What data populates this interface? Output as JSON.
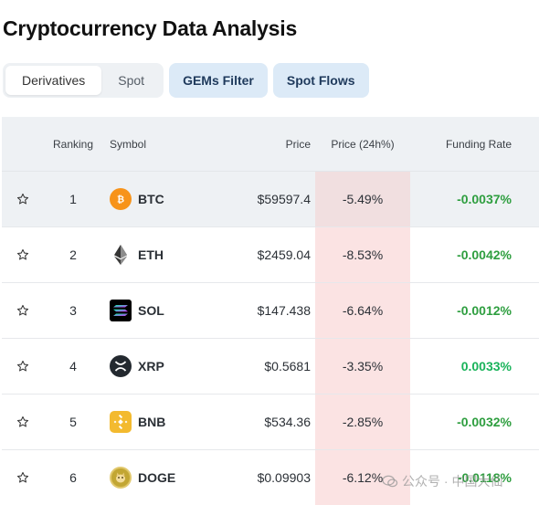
{
  "page": {
    "title": "Cryptocurrency Data Analysis"
  },
  "tabs": {
    "derivatives": "Derivatives",
    "spot": "Spot",
    "gems_filter": "GEMs Filter",
    "spot_flows": "Spot Flows"
  },
  "table": {
    "headers": {
      "ranking": "Ranking",
      "symbol": "Symbol",
      "price": "Price",
      "change": "Price (24h%)",
      "funding": "Funding Rate"
    },
    "rows": [
      {
        "rank": "1",
        "symbol": "BTC",
        "price": "$59597.4",
        "change": "-5.49%",
        "funding": "-0.0037%",
        "icon": "btc-icon"
      },
      {
        "rank": "2",
        "symbol": "ETH",
        "price": "$2459.04",
        "change": "-8.53%",
        "funding": "-0.0042%",
        "icon": "eth-icon"
      },
      {
        "rank": "3",
        "symbol": "SOL",
        "price": "$147.438",
        "change": "-6.64%",
        "funding": "-0.0012%",
        "icon": "sol-icon"
      },
      {
        "rank": "4",
        "symbol": "XRP",
        "price": "$0.5681",
        "change": "-3.35%",
        "funding": "0.0033%",
        "icon": "xrp-icon"
      },
      {
        "rank": "5",
        "symbol": "BNB",
        "price": "$534.36",
        "change": "-2.85%",
        "funding": "-0.0032%",
        "icon": "bnb-icon"
      },
      {
        "rank": "6",
        "symbol": "DOGE",
        "price": "$0.09903",
        "change": "-6.12%",
        "funding": "-0.0118%",
        "icon": "doge-icon"
      }
    ]
  },
  "colors": {
    "negative_funding": "#2e9e3f",
    "positive_funding": "#19b35a",
    "change_bg": "#fbe3e3",
    "pill_bg": "#dceaf7"
  },
  "watermark": {
    "text": "公众号 · 中国大仙"
  }
}
